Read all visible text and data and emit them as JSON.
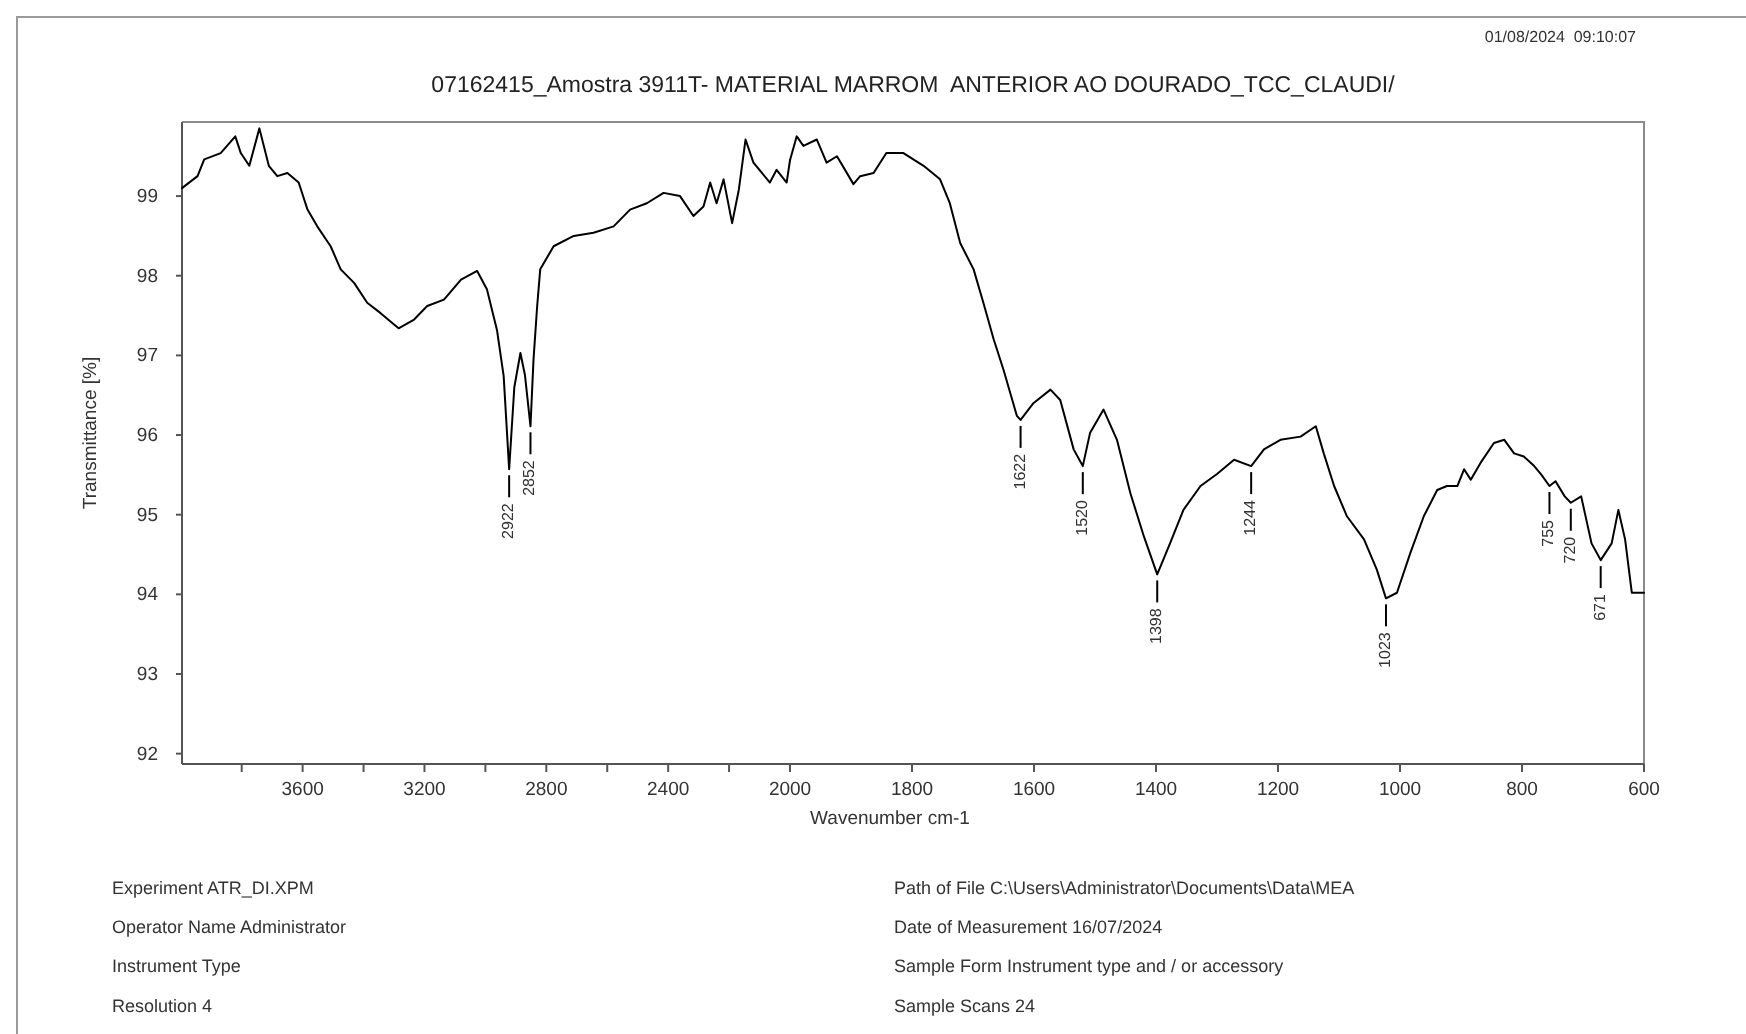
{
  "chart_data": [
    {
      "type": "line",
      "title": "07162415_Amostra 3911T- MATERIAL MARROM  ANTERIOR AO DOURADO_TCC_CLAUDI/",
      "ylabel": "Transmittance [%]",
      "xlim": [
        3996,
        2000
      ],
      "ylim": [
        91.87,
        99.93
      ],
      "xticks": [
        {
          "value": 3800,
          "label": null
        },
        3600,
        {
          "value": 3400,
          "label": null
        },
        3200,
        {
          "value": 3000,
          "label": null
        },
        2800,
        {
          "value": 2600,
          "label": null
        },
        2400,
        {
          "value": 2200,
          "label": null
        },
        2000
      ],
      "yticks": [
        92,
        93,
        94,
        95,
        96,
        97,
        98,
        99
      ],
      "x": [
        3996,
        3945,
        3923,
        3869,
        3821,
        3803,
        3775,
        3742,
        3711,
        3683,
        3650,
        3613,
        3584,
        3552,
        3508,
        3475,
        3431,
        3388,
        3344,
        3285,
        3234,
        3191,
        3136,
        3080,
        3027,
        2995,
        2962,
        2940,
        2922,
        2905,
        2885,
        2870,
        2852,
        2842,
        2830,
        2820,
        2776,
        2710,
        2645,
        2579,
        2525,
        2470,
        2415,
        2361,
        2317,
        2284,
        2262,
        2241,
        2218,
        2190,
        2168,
        2146,
        2120,
        2066,
        2044,
        2011,
        2000
      ],
      "series": [
        {
          "color": "#000000",
          "values": [
            99.1,
            99.25,
            99.46,
            99.54,
            99.75,
            99.54,
            99.38,
            99.85,
            99.38,
            99.25,
            99.29,
            99.17,
            98.83,
            98.62,
            98.37,
            98.08,
            97.91,
            97.66,
            97.53,
            97.34,
            97.45,
            97.62,
            97.7,
            97.95,
            98.06,
            97.83,
            97.32,
            96.74,
            95.57,
            96.6,
            97.03,
            96.75,
            96.11,
            96.95,
            97.62,
            98.08,
            98.37,
            98.5,
            98.54,
            98.62,
            98.83,
            98.91,
            99.04,
            99.0,
            98.75,
            98.87,
            99.17,
            98.91,
            99.21,
            98.66,
            99.08,
            99.71,
            99.42,
            99.17,
            99.33,
            99.17,
            99.45
          ]
        }
      ],
      "annotations": [
        "01/08/2024  09:10:07",
        {
          "text": "2922",
          "x": 2922,
          "y": 95.57
        },
        {
          "text": "2852",
          "x": 2852,
          "y": 96.11
        },
        "Experiment ATR_DI.XPM",
        "Operator Name Administrator",
        "Instrument Type",
        "Resolution 4",
        "Path of File C:\\Users\\Administrator\\Documents\\Data\\MEA",
        "Date of Measurement 16/07/2024",
        "Sample Form Instrument type and / or accessory",
        "Sample Scans 24"
      ]
    },
    {
      "type": "line",
      "xlabel": "Wavenumber cm-1",
      "tick_labels": "x",
      "xlim": [
        2000,
        600
      ],
      "ylim": [
        91.87,
        99.93
      ],
      "xticks": [
        1800,
        1600,
        1400,
        1200,
        1000,
        800,
        600
      ],
      "x": [
        2000,
        1989,
        1978,
        1956,
        1940,
        1923,
        1896,
        1885,
        1863,
        1842,
        1814,
        1781,
        1754,
        1738,
        1721,
        1699,
        1683,
        1666,
        1650,
        1628,
        1622,
        1601,
        1573,
        1557,
        1535,
        1520,
        1508,
        1486,
        1464,
        1442,
        1420,
        1398,
        1377,
        1355,
        1327,
        1300,
        1272,
        1244,
        1223,
        1196,
        1163,
        1138,
        1125,
        1108,
        1087,
        1059,
        1038,
        1023,
        1005,
        983,
        961,
        939,
        923,
        906,
        895,
        884,
        868,
        846,
        829,
        813,
        797,
        780,
        768,
        755,
        745,
        730,
        720,
        703,
        686,
        671,
        653,
        642,
        631,
        620,
        600
      ],
      "series": [
        {
          "color": "#000000",
          "values": [
            99.45,
            99.75,
            99.63,
            99.71,
            99.42,
            99.5,
            99.15,
            99.25,
            99.29,
            99.54,
            99.54,
            99.38,
            99.21,
            98.91,
            98.41,
            98.08,
            97.66,
            97.2,
            96.82,
            96.24,
            96.19,
            96.4,
            96.57,
            96.44,
            95.82,
            95.61,
            96.03,
            96.32,
            95.94,
            95.27,
            94.73,
            94.25,
            94.64,
            95.06,
            95.36,
            95.51,
            95.69,
            95.61,
            95.82,
            95.94,
            95.98,
            96.11,
            95.77,
            95.36,
            94.98,
            94.69,
            94.31,
            93.95,
            94.02,
            94.52,
            94.98,
            95.31,
            95.36,
            95.36,
            95.57,
            95.44,
            95.65,
            95.9,
            95.94,
            95.77,
            95.73,
            95.61,
            95.5,
            95.36,
            95.42,
            95.23,
            95.15,
            95.23,
            94.64,
            94.43,
            94.64,
            95.06,
            94.69,
            94.02,
            94.02
          ]
        }
      ],
      "annotations": [
        {
          "text": "1622",
          "x": 1622,
          "y": 96.19
        },
        {
          "text": "1520",
          "x": 1520,
          "y": 95.61
        },
        {
          "text": "1398",
          "x": 1398,
          "y": 94.25
        },
        {
          "text": "1244",
          "x": 1244,
          "y": 95.61
        },
        {
          "text": "1023",
          "x": 1023,
          "y": 93.95
        },
        {
          "text": "755",
          "x": 755,
          "y": 95.36
        },
        {
          "text": "720",
          "x": 720,
          "y": 95.15
        },
        {
          "text": "671",
          "x": 671,
          "y": 94.43
        }
      ]
    }
  ]
}
